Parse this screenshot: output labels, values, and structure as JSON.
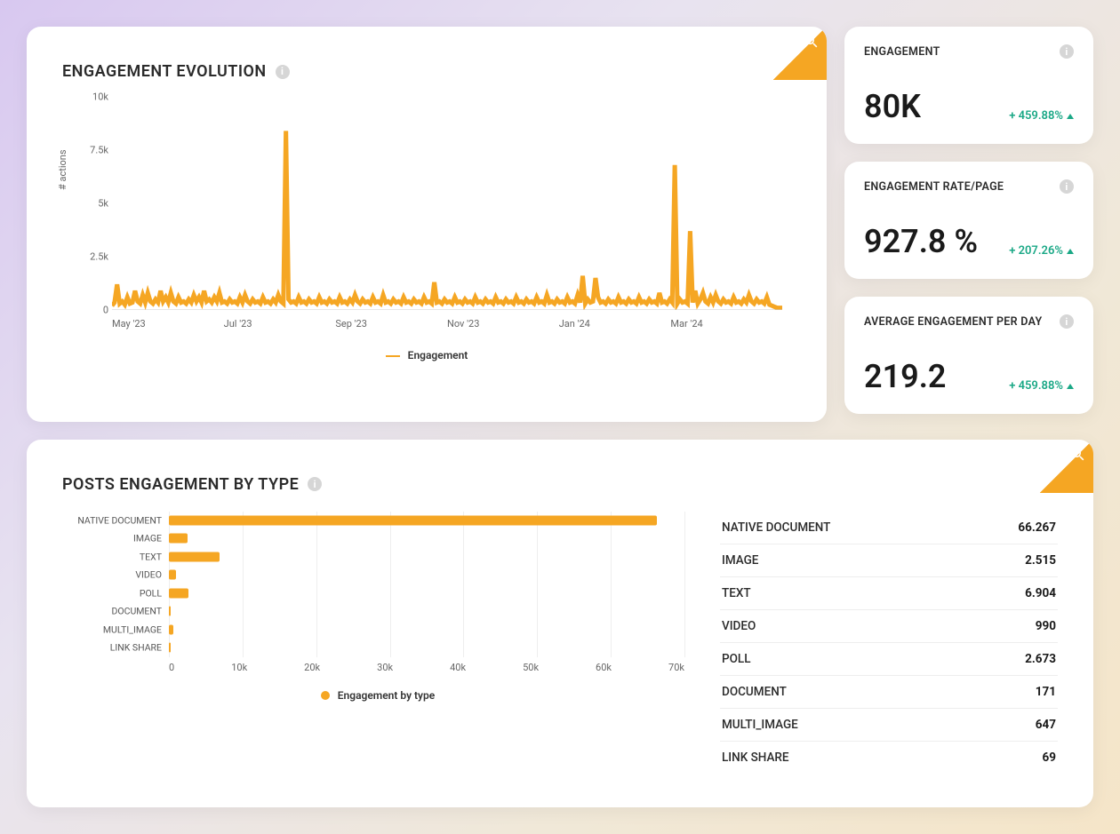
{
  "colors": {
    "accent": "#f5a623",
    "positive": "#1aa886",
    "card_bg": "#ffffff",
    "grid": "#eeeeee",
    "text": "#2b2b2b"
  },
  "evolution": {
    "title": "ENGAGEMENT EVOLUTION",
    "y_label": "# actions",
    "legend_label": "Engagement",
    "type": "line",
    "line_color": "#f5a623",
    "line_width": 1.2,
    "ylim": [
      0,
      10000
    ],
    "yticks": [
      {
        "pos": 0.0,
        "label": "0"
      },
      {
        "pos": 0.25,
        "label": "2.5k"
      },
      {
        "pos": 0.5,
        "label": "5k"
      },
      {
        "pos": 0.75,
        "label": "7.5k"
      },
      {
        "pos": 1.0,
        "label": "10k"
      }
    ],
    "xticks": [
      "May '23",
      "Jul '23",
      "Sep '23",
      "Nov '23",
      "Jan '24",
      "Mar '24"
    ],
    "values": [
      200,
      350,
      1200,
      300,
      400,
      250,
      600,
      300,
      350,
      900,
      400,
      300,
      700,
      350,
      800,
      400,
      300,
      500,
      350,
      900,
      400,
      600,
      350,
      800,
      400,
      300,
      600,
      350,
      400,
      300,
      500,
      350,
      700,
      400,
      600,
      350,
      900,
      400,
      500,
      350,
      600,
      400,
      800,
      350,
      400,
      300,
      500,
      350,
      400,
      300,
      600,
      350,
      700,
      400,
      300,
      500,
      350,
      400,
      300,
      600,
      350,
      400,
      300,
      500,
      350,
      700,
      400,
      300,
      8400,
      500,
      350,
      400,
      300,
      600,
      350,
      400,
      300,
      500,
      350,
      400,
      300,
      600,
      350,
      400,
      300,
      500,
      350,
      400,
      300,
      600,
      350,
      400,
      300,
      500,
      350,
      700,
      400,
      300,
      500,
      350,
      400,
      300,
      600,
      350,
      400,
      300,
      700,
      350,
      400,
      300,
      500,
      350,
      400,
      300,
      600,
      350,
      400,
      300,
      500,
      350,
      400,
      300,
      600,
      350,
      400,
      300,
      1300,
      350,
      400,
      300,
      500,
      350,
      400,
      300,
      600,
      350,
      400,
      300,
      500,
      350,
      400,
      300,
      600,
      350,
      400,
      300,
      500,
      350,
      400,
      300,
      600,
      350,
      400,
      300,
      500,
      350,
      400,
      300,
      600,
      350,
      400,
      300,
      500,
      350,
      400,
      300,
      600,
      350,
      400,
      300,
      700,
      350,
      400,
      300,
      500,
      350,
      400,
      300,
      600,
      350,
      400,
      300,
      700,
      350,
      1600,
      300,
      500,
      350,
      400,
      1500,
      600,
      350,
      400,
      300,
      500,
      350,
      400,
      300,
      600,
      350,
      400,
      300,
      500,
      350,
      400,
      300,
      600,
      350,
      400,
      300,
      500,
      350,
      400,
      300,
      800,
      350,
      400,
      300,
      500,
      350,
      6800,
      300,
      500,
      350,
      400,
      300,
      3700,
      350,
      900,
      300,
      500,
      800,
      400,
      300,
      600,
      350,
      700,
      400,
      300,
      500,
      350,
      400,
      300,
      600,
      350,
      400,
      300,
      500,
      350,
      700,
      400,
      300,
      500,
      350,
      400,
      300,
      600,
      250,
      200,
      150,
      100,
      100,
      100
    ]
  },
  "metrics": [
    {
      "title": "ENGAGEMENT",
      "value": "80K",
      "delta": "+ 459.88%"
    },
    {
      "title": "ENGAGEMENT RATE/PAGE",
      "value": "927.8 %",
      "delta": "+ 207.26%"
    },
    {
      "title": "AVERAGE ENGAGEMENT PER DAY",
      "value": "219.2",
      "delta": "+ 459.88%"
    }
  ],
  "by_type": {
    "title": "POSTS ENGAGEMENT BY TYPE",
    "legend_label": "Engagement by type",
    "type": "bar-horizontal",
    "bar_color": "#f5a623",
    "xlim": [
      0,
      70000
    ],
    "xticks": [
      {
        "pos": 0.0,
        "label": "0"
      },
      {
        "pos": 0.1429,
        "label": "10k"
      },
      {
        "pos": 0.2857,
        "label": "20k"
      },
      {
        "pos": 0.4286,
        "label": "30k"
      },
      {
        "pos": 0.5714,
        "label": "40k"
      },
      {
        "pos": 0.7143,
        "label": "50k"
      },
      {
        "pos": 0.8571,
        "label": "60k"
      },
      {
        "pos": 1.0,
        "label": "70k"
      }
    ],
    "rows": [
      {
        "label": "NATIVE DOCUMENT",
        "value": 66267,
        "display": "66.267"
      },
      {
        "label": "IMAGE",
        "value": 2515,
        "display": "2.515"
      },
      {
        "label": "TEXT",
        "value": 6904,
        "display": "6.904"
      },
      {
        "label": "VIDEO",
        "value": 990,
        "display": "990"
      },
      {
        "label": "POLL",
        "value": 2673,
        "display": "2.673"
      },
      {
        "label": "DOCUMENT",
        "value": 171,
        "display": "171"
      },
      {
        "label": "MULTI_IMAGE",
        "value": 647,
        "display": "647"
      },
      {
        "label": "LINK SHARE",
        "value": 69,
        "display": "69"
      }
    ]
  }
}
